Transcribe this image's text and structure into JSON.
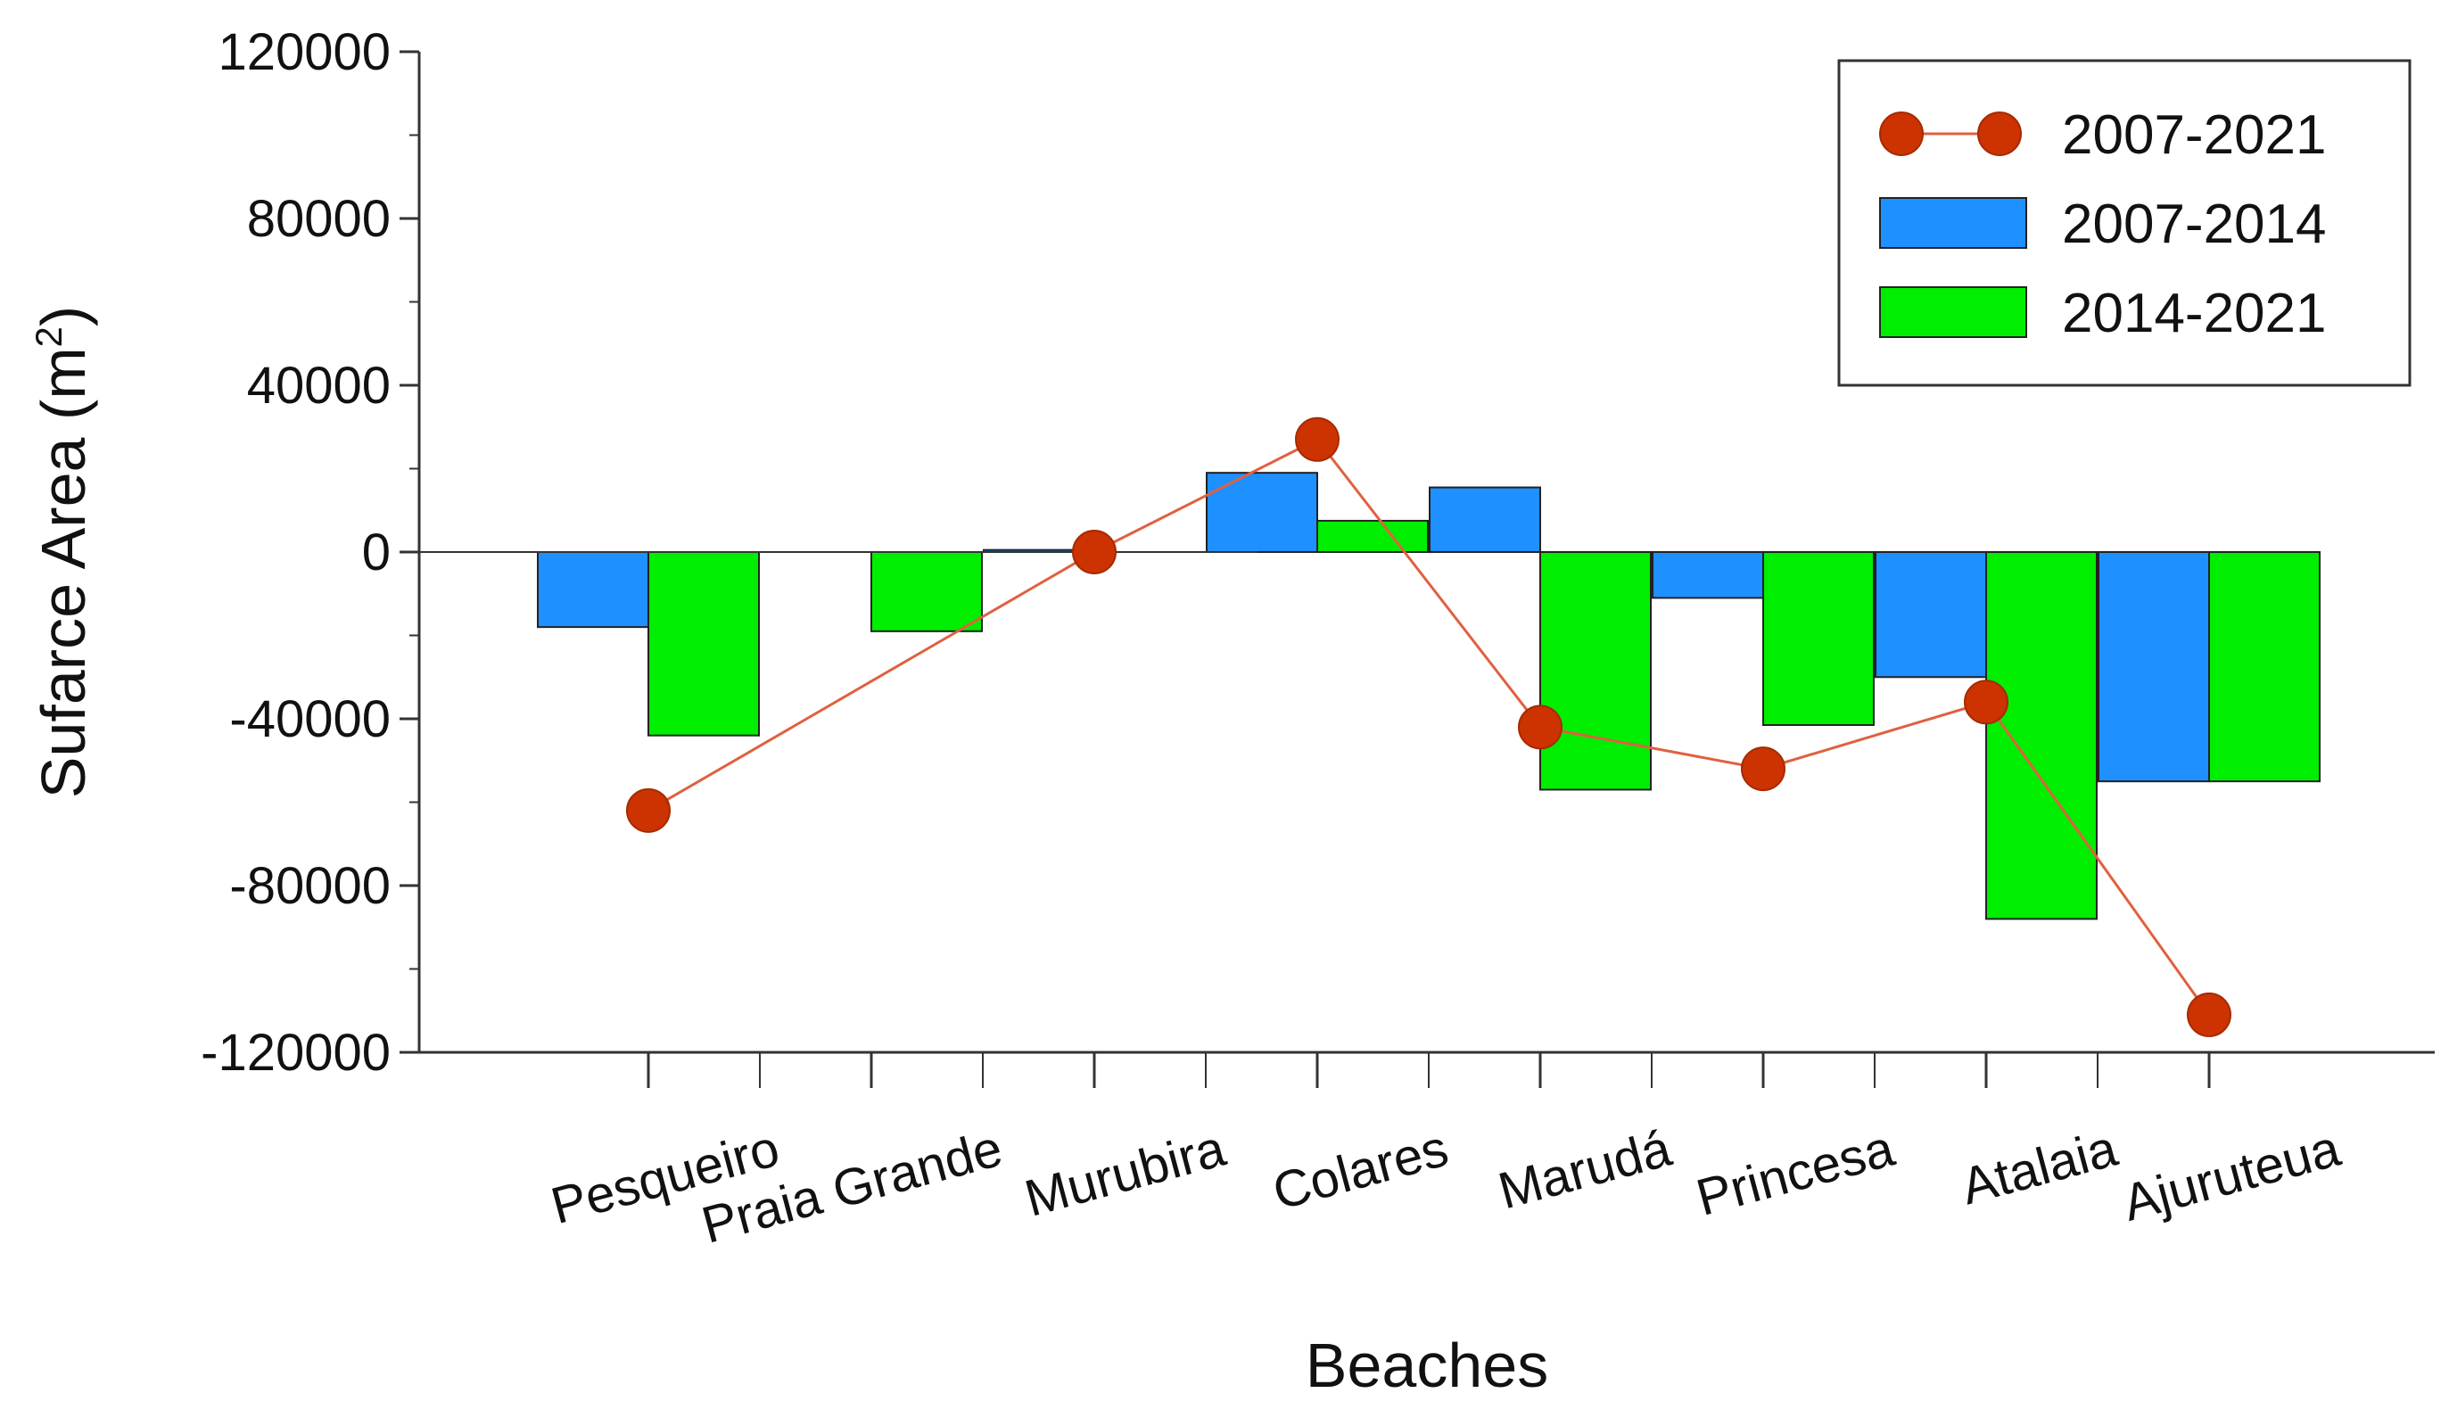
{
  "chart_data": {
    "type": "bar+line",
    "title": "",
    "xlabel": "Beaches",
    "ylabel_main": "Sufarce Area (m",
    "ylabel_sup": "2",
    "ylabel_close": ")",
    "ylim": [
      -120000,
      120000
    ],
    "yticks": [
      120000,
      80000,
      40000,
      0,
      -40000,
      -80000,
      -120000
    ],
    "ytick_labels": [
      "120000",
      "80000",
      "40000",
      "0",
      "-40000",
      "-80000",
      "-120000"
    ],
    "categories": [
      "Pesqueiro",
      "Praia Grande",
      "Murubira",
      "Colares",
      "Marudá",
      "Princesa",
      "Atalaia",
      "Ajuruteua"
    ],
    "legend_position": "top-right",
    "series": [
      {
        "name": "2007-2021",
        "type": "line",
        "color": "#cc3300",
        "values": [
          -62000,
          null,
          0,
          27000,
          -42000,
          -52000,
          -36000,
          -111000
        ]
      },
      {
        "name": "2007-2014",
        "type": "bar",
        "color": "#1e90ff",
        "values": [
          -18000,
          null,
          500,
          19000,
          15500,
          -11000,
          -30000,
          -55000
        ]
      },
      {
        "name": "2014-2021",
        "type": "bar",
        "color": "#00ee00",
        "values": [
          -44000,
          -19000,
          null,
          7500,
          -57000,
          -41500,
          -88000,
          -55000
        ]
      }
    ]
  }
}
